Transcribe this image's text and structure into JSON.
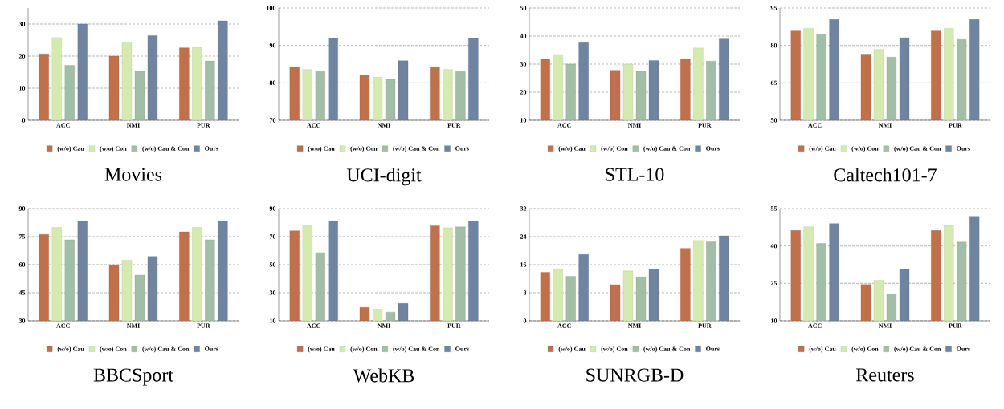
{
  "chart_data": [
    {
      "type": "bar",
      "title": "Movies",
      "categories": [
        "ACC",
        "NMI",
        "PUR"
      ],
      "ylim": [
        0,
        35
      ],
      "yticks": [
        0,
        10,
        20,
        30
      ],
      "grid": "y",
      "legend": "bottom",
      "series": [
        {
          "name": "(w/o) Cau",
          "color": "#c0704a",
          "values": [
            20.7,
            20.0,
            22.6
          ]
        },
        {
          "name": "(w/o) Con",
          "color": "#d4eab0",
          "values": [
            25.8,
            24.4,
            22.8
          ]
        },
        {
          "name": "(w/o) Cau & Con",
          "color": "#a2bea6",
          "values": [
            17.1,
            15.3,
            18.5
          ]
        },
        {
          "name": "Ours",
          "color": "#6f84a0",
          "values": [
            30.0,
            26.4,
            31.0
          ]
        }
      ]
    },
    {
      "type": "bar",
      "title": "UCI-digit",
      "categories": [
        "ACC",
        "NMI",
        "PUR"
      ],
      "ylim": [
        70,
        100
      ],
      "yticks": [
        70,
        80,
        90,
        100
      ],
      "grid": "y",
      "legend": "bottom",
      "series": [
        {
          "name": "(w/o) Cau",
          "color": "#c0704a",
          "values": [
            84.3,
            82.1,
            84.3
          ]
        },
        {
          "name": "(w/o) Con",
          "color": "#d4eab0",
          "values": [
            83.6,
            81.5,
            83.6
          ]
        },
        {
          "name": "(w/o) Cau & Con",
          "color": "#a2bea6",
          "values": [
            83.0,
            80.9,
            83.0
          ]
        },
        {
          "name": "Ours",
          "color": "#6f84a0",
          "values": [
            91.9,
            85.9,
            91.9
          ]
        }
      ]
    },
    {
      "type": "bar",
      "title": "STL-10",
      "categories": [
        "ACC",
        "NMI",
        "PUR"
      ],
      "ylim": [
        10,
        50
      ],
      "yticks": [
        10,
        20,
        30,
        40,
        50
      ],
      "grid": "y",
      "legend": "bottom",
      "series": [
        {
          "name": "(w/o) Cau",
          "color": "#c0704a",
          "values": [
            31.7,
            27.8,
            31.9
          ]
        },
        {
          "name": "(w/o) Con",
          "color": "#d4eab0",
          "values": [
            33.4,
            30.0,
            35.8
          ]
        },
        {
          "name": "(w/o) Cau & Con",
          "color": "#a2bea6",
          "values": [
            30.0,
            27.5,
            31.1
          ]
        },
        {
          "name": "Ours",
          "color": "#6f84a0",
          "values": [
            37.9,
            31.3,
            39.0
          ]
        }
      ]
    },
    {
      "type": "bar",
      "title": "Caltech101-7",
      "categories": [
        "ACC",
        "NMI",
        "PUR"
      ],
      "ylim": [
        50,
        95
      ],
      "yticks": [
        50,
        65,
        80,
        95
      ],
      "grid": "y",
      "legend": "bottom",
      "series": [
        {
          "name": "(w/o) Cau",
          "color": "#c0704a",
          "values": [
            85.8,
            76.5,
            85.8
          ]
        },
        {
          "name": "(w/o) Con",
          "color": "#d4eab0",
          "values": [
            86.9,
            78.4,
            86.9
          ]
        },
        {
          "name": "(w/o) Cau & Con",
          "color": "#a2bea6",
          "values": [
            84.6,
            75.3,
            82.4
          ]
        },
        {
          "name": "Ours",
          "color": "#6f84a0",
          "values": [
            90.4,
            83.1,
            90.4
          ]
        }
      ]
    },
    {
      "type": "bar",
      "title": "BBCSport",
      "categories": [
        "ACC",
        "NMI",
        "PUR"
      ],
      "ylim": [
        30,
        90
      ],
      "yticks": [
        30,
        45,
        60,
        75,
        90
      ],
      "grid": "y",
      "legend": "bottom",
      "series": [
        {
          "name": "(w/o) Cau",
          "color": "#c0704a",
          "values": [
            76.2,
            59.9,
            77.6
          ]
        },
        {
          "name": "(w/o) Con",
          "color": "#d4eab0",
          "values": [
            79.9,
            62.4,
            79.9
          ]
        },
        {
          "name": "(w/o) Cau & Con",
          "color": "#a2bea6",
          "values": [
            73.3,
            54.4,
            73.3
          ]
        },
        {
          "name": "Ours",
          "color": "#6f84a0",
          "values": [
            83.2,
            64.4,
            83.2
          ]
        }
      ]
    },
    {
      "type": "bar",
      "title": "WebKB",
      "categories": [
        "ACC",
        "NMI",
        "PUR"
      ],
      "ylim": [
        10,
        90
      ],
      "yticks": [
        10,
        30,
        50,
        70,
        90
      ],
      "grid": "y",
      "legend": "bottom",
      "series": [
        {
          "name": "(w/o) Cau",
          "color": "#c0704a",
          "values": [
            74.2,
            19.6,
            77.7
          ]
        },
        {
          "name": "(w/o) Con",
          "color": "#d4eab0",
          "values": [
            78.1,
            18.3,
            76.3
          ]
        },
        {
          "name": "(w/o) Cau & Con",
          "color": "#a2bea6",
          "values": [
            58.6,
            16.2,
            77.0
          ]
        },
        {
          "name": "Ours",
          "color": "#6f84a0",
          "values": [
            81.1,
            22.4,
            81.1
          ]
        }
      ]
    },
    {
      "type": "bar",
      "title": "SUNRGB-D",
      "categories": [
        "ACC",
        "NMI",
        "PUR"
      ],
      "ylim": [
        0,
        32
      ],
      "yticks": [
        0,
        8,
        16,
        24,
        32
      ],
      "grid": "y",
      "legend": "bottom",
      "series": [
        {
          "name": "(w/o) Cau",
          "color": "#c0704a",
          "values": [
            13.8,
            10.3,
            20.7
          ]
        },
        {
          "name": "(w/o) Con",
          "color": "#d4eab0",
          "values": [
            14.8,
            14.2,
            22.9
          ]
        },
        {
          "name": "(w/o) Cau & Con",
          "color": "#a2bea6",
          "values": [
            12.7,
            12.5,
            22.5
          ]
        },
        {
          "name": "Ours",
          "color": "#6f84a0",
          "values": [
            18.9,
            14.7,
            24.2
          ]
        }
      ]
    },
    {
      "type": "bar",
      "title": "Reuters",
      "categories": [
        "ACC",
        "NMI",
        "PUR"
      ],
      "ylim": [
        10,
        55
      ],
      "yticks": [
        10,
        25,
        40,
        55
      ],
      "grid": "y",
      "legend": "bottom",
      "series": [
        {
          "name": "(w/o) Cau",
          "color": "#c0704a",
          "values": [
            46.2,
            24.5,
            46.2
          ]
        },
        {
          "name": "(w/o) Con",
          "color": "#d4eab0",
          "values": [
            47.7,
            26.2,
            48.3
          ]
        },
        {
          "name": "(w/o) Cau & Con",
          "color": "#a2bea6",
          "values": [
            41.0,
            20.8,
            41.6
          ]
        },
        {
          "name": "Ours",
          "color": "#6f84a0",
          "values": [
            49.0,
            30.6,
            51.9
          ]
        }
      ]
    }
  ]
}
